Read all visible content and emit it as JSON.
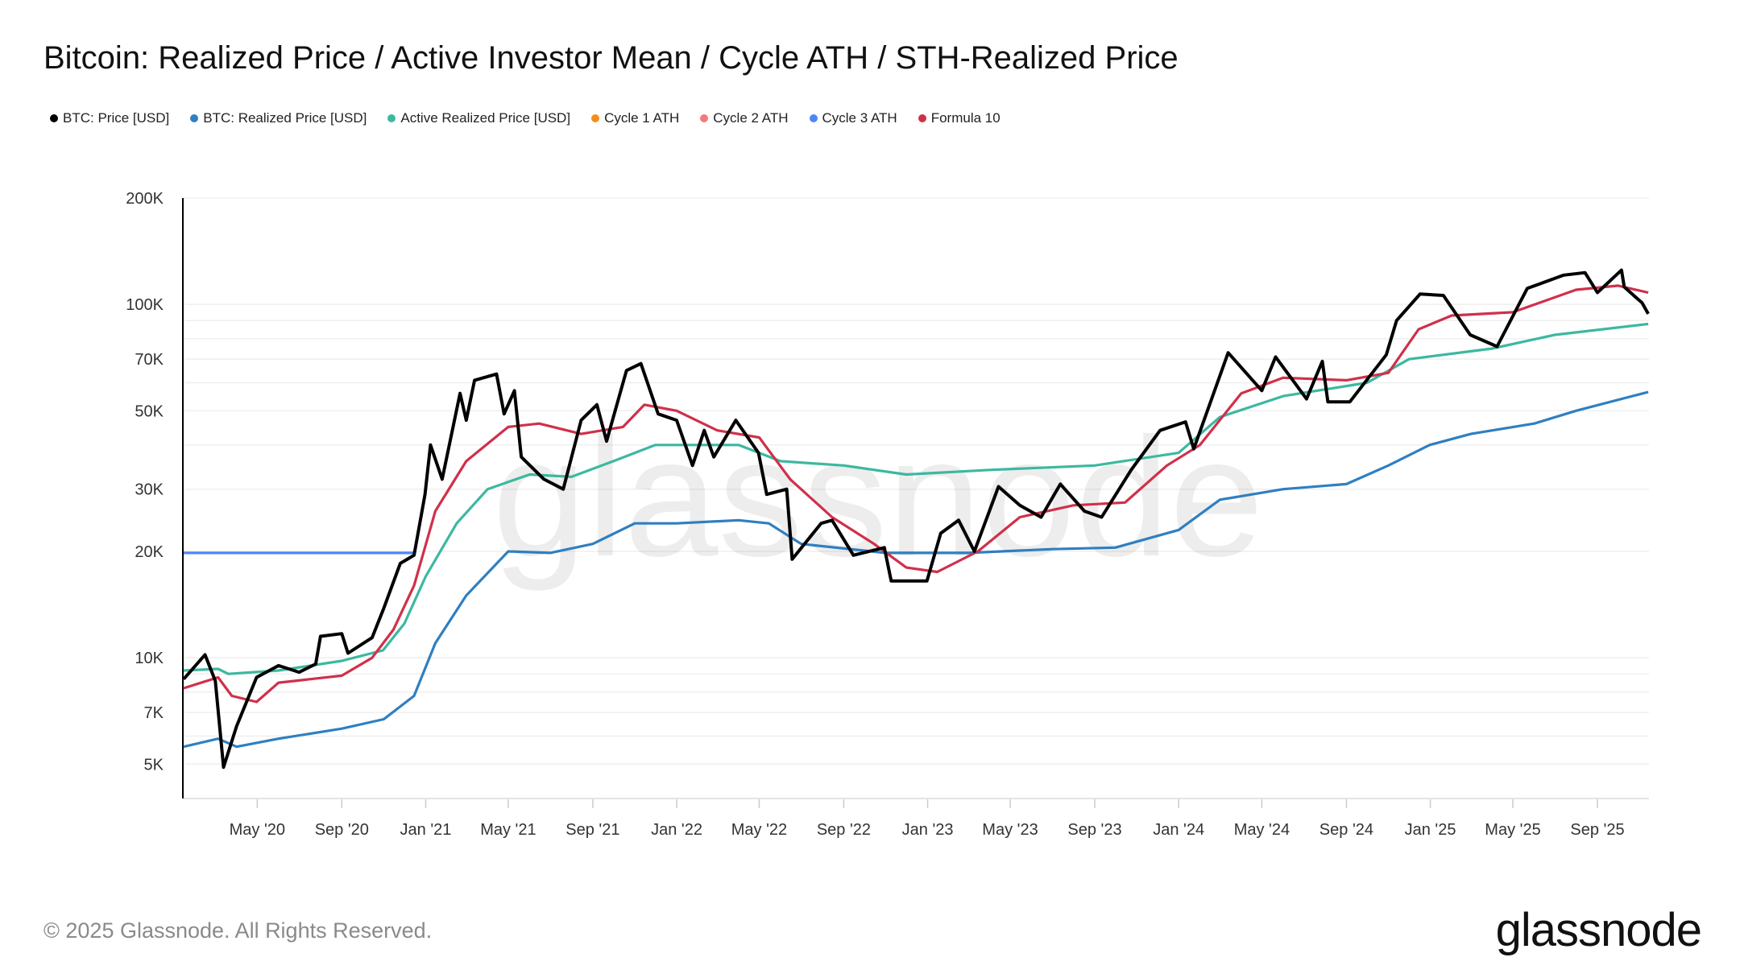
{
  "title": "Bitcoin: Realized Price / Active Investor Mean / Cycle ATH / STH-Realized Price",
  "footer": {
    "copyright": "© 2025 Glassnode. All Rights Reserved.",
    "logo": "glassnode",
    "watermark": "glassnode"
  },
  "chart_data": {
    "type": "line",
    "title": "Bitcoin: Realized Price / Active Investor Mean / Cycle ATH / STH-Realized Price",
    "xlabel": "",
    "ylabel": "",
    "yscale": "log",
    "ylim": [
      4000,
      200000
    ],
    "xlim": [
      "2020-01-15",
      "2025-11-15"
    ],
    "grid": true,
    "legend_position": "top-left",
    "y_ticks": [
      {
        "v": 200000,
        "label": "200K"
      },
      {
        "v": 100000,
        "label": "100K"
      },
      {
        "v": 70000,
        "label": "70K"
      },
      {
        "v": 50000,
        "label": "50K"
      },
      {
        "v": 30000,
        "label": "30K"
      },
      {
        "v": 20000,
        "label": "20K"
      },
      {
        "v": 10000,
        "label": "10K"
      },
      {
        "v": 7000,
        "label": "7K"
      },
      {
        "v": 5000,
        "label": "5K"
      }
    ],
    "x_ticks": [
      {
        "d": "2020-05-01",
        "label": "May '20"
      },
      {
        "d": "2020-09-01",
        "label": "Sep '20"
      },
      {
        "d": "2021-01-01",
        "label": "Jan '21"
      },
      {
        "d": "2021-05-01",
        "label": "May '21"
      },
      {
        "d": "2021-09-01",
        "label": "Sep '21"
      },
      {
        "d": "2022-01-01",
        "label": "Jan '22"
      },
      {
        "d": "2022-05-01",
        "label": "May '22"
      },
      {
        "d": "2022-09-01",
        "label": "Sep '22"
      },
      {
        "d": "2023-01-01",
        "label": "Jan '23"
      },
      {
        "d": "2023-05-01",
        "label": "May '23"
      },
      {
        "d": "2023-09-01",
        "label": "Sep '23"
      },
      {
        "d": "2024-01-01",
        "label": "Jan '24"
      },
      {
        "d": "2024-05-01",
        "label": "May '24"
      },
      {
        "d": "2024-09-01",
        "label": "Sep '24"
      },
      {
        "d": "2025-01-01",
        "label": "Jan '25"
      },
      {
        "d": "2025-05-01",
        "label": "May '25"
      },
      {
        "d": "2025-09-01",
        "label": "Sep '25"
      }
    ],
    "series": [
      {
        "name": "BTC: Price [USD]",
        "color": "#000000",
        "points": [
          [
            "2020-01-15",
            8700
          ],
          [
            "2020-02-15",
            10200
          ],
          [
            "2020-03-01",
            8600
          ],
          [
            "2020-03-13",
            4900
          ],
          [
            "2020-04-01",
            6400
          ],
          [
            "2020-04-30",
            8800
          ],
          [
            "2020-06-01",
            9500
          ],
          [
            "2020-07-01",
            9100
          ],
          [
            "2020-07-25",
            9600
          ],
          [
            "2020-08-01",
            11500
          ],
          [
            "2020-09-01",
            11700
          ],
          [
            "2020-09-10",
            10300
          ],
          [
            "2020-10-15",
            11400
          ],
          [
            "2020-11-01",
            13800
          ],
          [
            "2020-11-25",
            18500
          ],
          [
            "2020-12-15",
            19500
          ],
          [
            "2020-12-31",
            29000
          ],
          [
            "2021-01-08",
            40000
          ],
          [
            "2021-01-25",
            32000
          ],
          [
            "2021-02-20",
            56000
          ],
          [
            "2021-03-01",
            47000
          ],
          [
            "2021-03-13",
            61000
          ],
          [
            "2021-04-14",
            63500
          ],
          [
            "2021-04-25",
            49000
          ],
          [
            "2021-05-10",
            57000
          ],
          [
            "2021-05-20",
            37000
          ],
          [
            "2021-06-22",
            32000
          ],
          [
            "2021-07-20",
            30000
          ],
          [
            "2021-08-15",
            47000
          ],
          [
            "2021-09-07",
            52000
          ],
          [
            "2021-09-21",
            41000
          ],
          [
            "2021-10-20",
            65000
          ],
          [
            "2021-11-10",
            68000
          ],
          [
            "2021-12-05",
            49000
          ],
          [
            "2022-01-01",
            47000
          ],
          [
            "2022-01-24",
            35000
          ],
          [
            "2022-02-10",
            44000
          ],
          [
            "2022-02-24",
            37000
          ],
          [
            "2022-03-28",
            47000
          ],
          [
            "2022-04-30",
            38000
          ],
          [
            "2022-05-12",
            29000
          ],
          [
            "2022-06-10",
            30000
          ],
          [
            "2022-06-18",
            19000
          ],
          [
            "2022-07-30",
            24000
          ],
          [
            "2022-08-15",
            24500
          ],
          [
            "2022-09-15",
            19500
          ],
          [
            "2022-10-30",
            20500
          ],
          [
            "2022-11-09",
            16500
          ],
          [
            "2022-12-31",
            16500
          ],
          [
            "2023-01-20",
            22500
          ],
          [
            "2023-02-15",
            24500
          ],
          [
            "2023-03-10",
            20000
          ],
          [
            "2023-04-14",
            30500
          ],
          [
            "2023-05-15",
            27000
          ],
          [
            "2023-06-15",
            25000
          ],
          [
            "2023-07-13",
            31000
          ],
          [
            "2023-08-17",
            26000
          ],
          [
            "2023-09-11",
            25000
          ],
          [
            "2023-10-24",
            34000
          ],
          [
            "2023-12-05",
            44000
          ],
          [
            "2024-01-11",
            46500
          ],
          [
            "2024-01-23",
            39000
          ],
          [
            "2024-03-13",
            73000
          ],
          [
            "2024-05-01",
            57000
          ],
          [
            "2024-05-21",
            71000
          ],
          [
            "2024-07-05",
            54000
          ],
          [
            "2024-07-28",
            69000
          ],
          [
            "2024-08-05",
            53000
          ],
          [
            "2024-09-06",
            53000
          ],
          [
            "2024-10-29",
            72000
          ],
          [
            "2024-11-13",
            90000
          ],
          [
            "2024-12-17",
            107000
          ],
          [
            "2025-01-20",
            106000
          ],
          [
            "2025-02-28",
            82000
          ],
          [
            "2025-04-08",
            76000
          ],
          [
            "2025-05-22",
            111000
          ],
          [
            "2025-07-14",
            121000
          ],
          [
            "2025-08-14",
            123000
          ],
          [
            "2025-09-01",
            108000
          ],
          [
            "2025-10-06",
            125000
          ],
          [
            "2025-10-10",
            112000
          ],
          [
            "2025-11-05",
            101000
          ],
          [
            "2025-11-14",
            94000
          ]
        ]
      },
      {
        "name": "BTC: Realized Price [USD]",
        "color": "#2f7fc1",
        "points": [
          [
            "2020-01-15",
            5600
          ],
          [
            "2020-03-05",
            5900
          ],
          [
            "2020-04-01",
            5600
          ],
          [
            "2020-06-01",
            5900
          ],
          [
            "2020-09-01",
            6300
          ],
          [
            "2020-11-01",
            6700
          ],
          [
            "2020-12-15",
            7800
          ],
          [
            "2021-01-15",
            11000
          ],
          [
            "2021-03-01",
            15000
          ],
          [
            "2021-05-01",
            20000
          ],
          [
            "2021-07-01",
            19800
          ],
          [
            "2021-09-01",
            21000
          ],
          [
            "2021-11-01",
            24000
          ],
          [
            "2022-01-01",
            24000
          ],
          [
            "2022-04-01",
            24500
          ],
          [
            "2022-05-15",
            24000
          ],
          [
            "2022-07-01",
            21000
          ],
          [
            "2022-11-01",
            19800
          ],
          [
            "2023-03-01",
            19800
          ],
          [
            "2023-07-01",
            20300
          ],
          [
            "2023-10-01",
            20500
          ],
          [
            "2024-01-01",
            23000
          ],
          [
            "2024-03-01",
            28000
          ],
          [
            "2024-06-01",
            30000
          ],
          [
            "2024-09-01",
            31000
          ],
          [
            "2024-11-01",
            35000
          ],
          [
            "2024-12-31",
            40000
          ],
          [
            "2025-03-01",
            43000
          ],
          [
            "2025-06-01",
            46000
          ],
          [
            "2025-08-01",
            50000
          ],
          [
            "2025-11-14",
            56500
          ]
        ]
      },
      {
        "name": "Active Realized Price [USD]",
        "color": "#3cb8a0",
        "points": [
          [
            "2020-01-15",
            9200
          ],
          [
            "2020-03-05",
            9300
          ],
          [
            "2020-03-20",
            9000
          ],
          [
            "2020-06-01",
            9200
          ],
          [
            "2020-09-01",
            9800
          ],
          [
            "2020-10-31",
            10500
          ],
          [
            "2020-12-01",
            12500
          ],
          [
            "2021-01-01",
            17000
          ],
          [
            "2021-02-15",
            24000
          ],
          [
            "2021-04-01",
            30000
          ],
          [
            "2021-06-01",
            33000
          ],
          [
            "2021-08-01",
            32500
          ],
          [
            "2021-10-01",
            36000
          ],
          [
            "2021-12-01",
            40000
          ],
          [
            "2022-04-01",
            40000
          ],
          [
            "2022-06-01",
            36000
          ],
          [
            "2022-09-01",
            35000
          ],
          [
            "2022-12-01",
            33000
          ],
          [
            "2023-04-01",
            34000
          ],
          [
            "2023-09-01",
            35000
          ],
          [
            "2024-01-01",
            38000
          ],
          [
            "2024-03-01",
            48000
          ],
          [
            "2024-06-01",
            55000
          ],
          [
            "2024-10-01",
            60000
          ],
          [
            "2024-12-01",
            70000
          ],
          [
            "2025-04-01",
            75000
          ],
          [
            "2025-07-01",
            82000
          ],
          [
            "2025-11-14",
            88000
          ]
        ]
      },
      {
        "name": "Cycle 1 ATH",
        "color": "#f28e1c",
        "points": []
      },
      {
        "name": "Cycle 2 ATH",
        "color": "#f47a7a",
        "points": []
      },
      {
        "name": "Cycle 3 ATH",
        "color": "#4f86f7",
        "points": [
          [
            "2020-01-15",
            19800
          ],
          [
            "2020-12-15",
            19800
          ]
        ]
      },
      {
        "name": "Formula 10",
        "color": "#d0304a",
        "points": [
          [
            "2020-01-15",
            8200
          ],
          [
            "2020-03-05",
            8800
          ],
          [
            "2020-03-25",
            7800
          ],
          [
            "2020-04-30",
            7500
          ],
          [
            "2020-06-01",
            8500
          ],
          [
            "2020-09-01",
            8900
          ],
          [
            "2020-10-15",
            10000
          ],
          [
            "2020-11-15",
            12000
          ],
          [
            "2020-12-15",
            16000
          ],
          [
            "2021-01-15",
            26000
          ],
          [
            "2021-03-01",
            36000
          ],
          [
            "2021-05-01",
            45000
          ],
          [
            "2021-06-15",
            46000
          ],
          [
            "2021-08-15",
            43000
          ],
          [
            "2021-10-15",
            45000
          ],
          [
            "2021-11-15",
            52000
          ],
          [
            "2022-01-01",
            50000
          ],
          [
            "2022-03-01",
            44000
          ],
          [
            "2022-05-01",
            42000
          ],
          [
            "2022-06-15",
            32000
          ],
          [
            "2022-08-15",
            25000
          ],
          [
            "2022-10-15",
            21000
          ],
          [
            "2022-12-01",
            18000
          ],
          [
            "2023-01-15",
            17500
          ],
          [
            "2023-03-15",
            20000
          ],
          [
            "2023-05-15",
            25000
          ],
          [
            "2023-08-01",
            27000
          ],
          [
            "2023-10-15",
            27500
          ],
          [
            "2023-12-15",
            35000
          ],
          [
            "2024-02-01",
            40000
          ],
          [
            "2024-04-01",
            56000
          ],
          [
            "2024-06-01",
            62000
          ],
          [
            "2024-09-01",
            61000
          ],
          [
            "2024-11-01",
            64000
          ],
          [
            "2024-12-15",
            85000
          ],
          [
            "2025-02-01",
            93000
          ],
          [
            "2025-05-01",
            95000
          ],
          [
            "2025-08-01",
            110000
          ],
          [
            "2025-10-01",
            113000
          ],
          [
            "2025-11-14",
            108000
          ]
        ]
      }
    ]
  }
}
